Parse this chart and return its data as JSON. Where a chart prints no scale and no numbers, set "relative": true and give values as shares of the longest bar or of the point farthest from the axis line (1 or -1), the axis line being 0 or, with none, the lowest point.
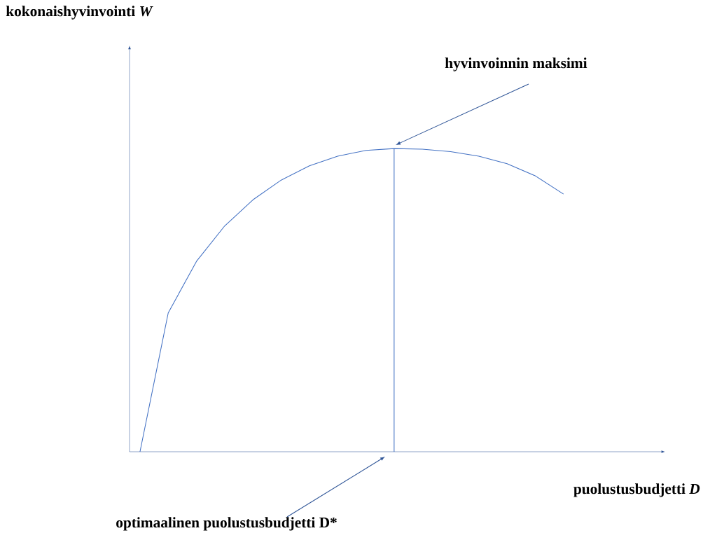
{
  "chart_data": {
    "type": "line",
    "relative": true,
    "xlabel": "puolustusbudjetti *D*",
    "categories": [
      null,
      null,
      null,
      null,
      null,
      null,
      null,
      null,
      null,
      null,
      null,
      null,
      null,
      null,
      null,
      null
    ],
    "series": [
      {
        "color": "#4472c4",
        "values": [
          0,
          0.458,
          0.628,
          0.745,
          0.831,
          0.896,
          0.943,
          0.975,
          0.994,
          1,
          0.998,
          0.99,
          0.975,
          0.95,
          0.91,
          0.85
        ]
      }
    ],
    "annotations": [
      "kokonaishyvinvointi *W*",
      "hyvinvoinnin maksimi",
      "optimaalinen puolustusbudjetti D*"
    ],
    "marker": "none"
  }
}
